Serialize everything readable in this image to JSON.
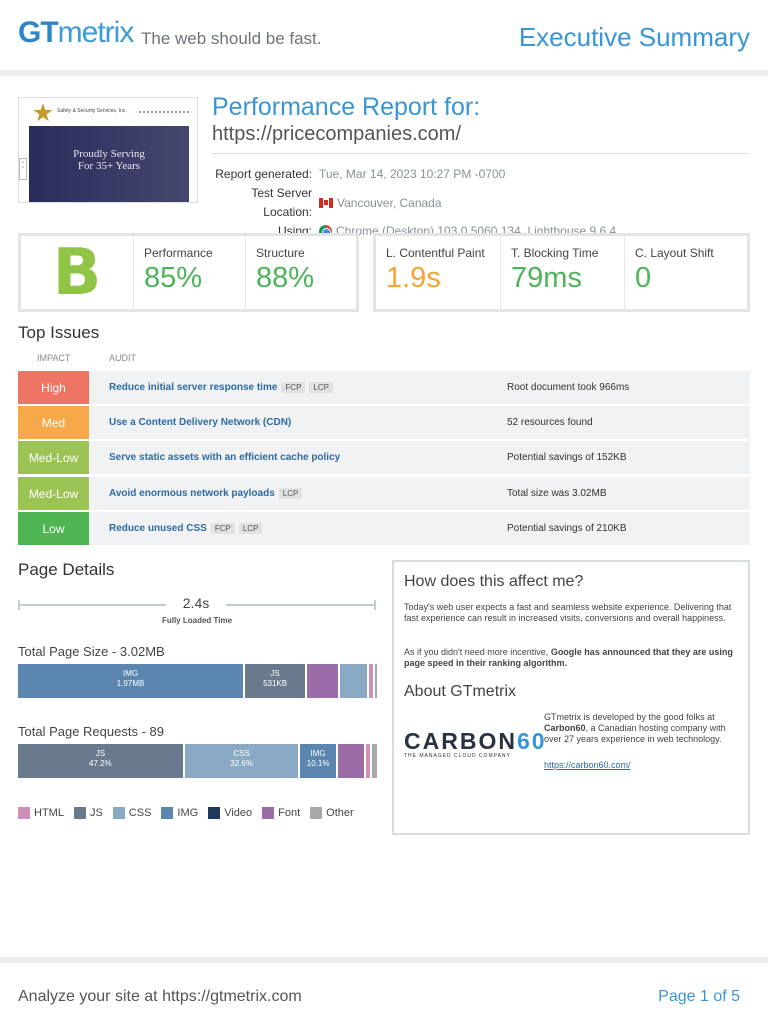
{
  "header": {
    "logo_gt": "GT",
    "logo_metrix": "metrix",
    "tagline": "The web should be fast.",
    "section_title": "Executive Summary"
  },
  "report": {
    "title": "Performance Report for:",
    "url": "https://pricecompanies.com/",
    "thumbnail": {
      "site_name": "Safety & Security Services, Inc.",
      "hero_line1": "Proudly Serving",
      "hero_line2": "For 35+ Years"
    },
    "meta": [
      {
        "label": "Report generated:",
        "value": "Tue, Mar 14, 2023 10:27 PM -0700",
        "icon": ""
      },
      {
        "label": "Test Server Location:",
        "value": "Vancouver, Canada",
        "icon": "canada-flag-icon"
      },
      {
        "label": "Using:",
        "value": "Chrome (Desktop) 103.0.5060.134, Lighthouse 9.6.4",
        "icon": "chrome-icon"
      }
    ]
  },
  "scores": {
    "grade": "B",
    "grade_color": "#8fc447",
    "metrics_left": [
      {
        "label": "Performance",
        "value": "85%"
      },
      {
        "label": "Structure",
        "value": "88%"
      }
    ],
    "metrics_right": [
      {
        "label": "L. Contentful Paint",
        "value": "1.9s",
        "color": "#f4a535"
      },
      {
        "label": "T. Blocking Time",
        "value": "79ms",
        "color": "#4eb45a"
      },
      {
        "label": "C. Layout Shift",
        "value": "0",
        "color": "#4eb45a"
      }
    ]
  },
  "top_issues": {
    "heading": "Top Issues",
    "col_impact": "IMPACT",
    "col_audit": "AUDIT",
    "rows": [
      {
        "impact": "High",
        "color": "#ee7563",
        "audit": "Reduce initial server response time",
        "tags": [
          "FCP",
          "LCP"
        ],
        "result": "Root document took 966ms"
      },
      {
        "impact": "Med",
        "color": "#f7a94a",
        "audit": "Use a Content Delivery Network (CDN)",
        "tags": [],
        "result": "52 resources found"
      },
      {
        "impact": "Med-Low",
        "color": "#9bc455",
        "audit": "Serve static assets with an efficient cache policy",
        "tags": [],
        "result": "Potential savings of 152KB"
      },
      {
        "impact": "Med-Low",
        "color": "#9bc455",
        "audit": "Avoid enormous network payloads",
        "tags": [
          "LCP"
        ],
        "result": "Total size was 3.02MB"
      },
      {
        "impact": "Low",
        "color": "#4fb452",
        "audit": "Reduce unused CSS",
        "tags": [
          "FCP",
          "LCP"
        ],
        "result": "Potential savings of 210KB"
      }
    ]
  },
  "page_details": {
    "heading": "Page Details",
    "fully_loaded_value": "2.4s",
    "fully_loaded_label": "Fully Loaded Time",
    "size_title": "Total Page Size - 3.02MB",
    "size_segments": [
      {
        "type": "IMG",
        "label": "IMG",
        "sub": "1.97MB",
        "share": 0.645,
        "color": "#5b86b0"
      },
      {
        "type": "JS",
        "label": "JS",
        "sub": "531KB",
        "share": 0.172,
        "color": "#6a7a8d"
      },
      {
        "type": "Font",
        "label": "",
        "sub": "",
        "share": 0.088,
        "color": "#9a6da8"
      },
      {
        "type": "CSS",
        "label": "",
        "sub": "",
        "share": 0.078,
        "color": "#8aa9c4"
      },
      {
        "type": "HTML",
        "label": "",
        "sub": "",
        "share": 0.01,
        "color": "#cf8fb8"
      },
      {
        "type": "Other",
        "label": "",
        "sub": "",
        "share": 0.007,
        "color": "#a8a8a8"
      }
    ],
    "requests_title": "Total Page Requests - 89",
    "request_segments": [
      {
        "type": "JS",
        "label": "JS",
        "sub": "47.2%",
        "share": 0.472,
        "color": "#6a7a8d"
      },
      {
        "type": "CSS",
        "label": "CSS",
        "sub": "32.6%",
        "share": 0.326,
        "color": "#8aa9c4"
      },
      {
        "type": "IMG",
        "label": "IMG",
        "sub": "10.1%",
        "share": 0.101,
        "color": "#5b86b0"
      },
      {
        "type": "Font",
        "label": "",
        "sub": "",
        "share": 0.075,
        "color": "#9a6da8"
      },
      {
        "type": "HTML",
        "label": "",
        "sub": "",
        "share": 0.012,
        "color": "#cf8fb8"
      },
      {
        "type": "Other",
        "label": "",
        "sub": "",
        "share": 0.014,
        "color": "#a8a8a8"
      }
    ],
    "legend": [
      {
        "label": "HTML",
        "color": "#cf8fb8"
      },
      {
        "label": "JS",
        "color": "#6a7a8d"
      },
      {
        "label": "CSS",
        "color": "#8aa9c4"
      },
      {
        "label": "IMG",
        "color": "#5b86b0"
      },
      {
        "label": "Video",
        "color": "#1d3a5c"
      },
      {
        "label": "Font",
        "color": "#9a6da8"
      },
      {
        "label": "Other",
        "color": "#a8a8a8"
      }
    ]
  },
  "info_panel": {
    "q_heading": "How does this affect me?",
    "q_text1": "Today's web user expects a fast and seamless website experience. Delivering that fast experience can result in increased visits, conversions and overall happiness.",
    "q_text2_pre": "As if you didn't need more incentive, ",
    "q_text2_bold": "Google has announced that they are using page speed in their ranking algorithm.",
    "about_heading": "About GTmetrix",
    "carbon_word": "CARBON",
    "carbon_num": "60",
    "carbon_tagline": "THE MANAGED CLOUD COMPANY",
    "about_pre": "GTmetrix is developed by the good folks at ",
    "about_bold": "Carbon60",
    "about_post": ", a Canadian hosting company with over 27 years experience in web technology.",
    "link": "https://carbon60.com/"
  },
  "footer": {
    "analyze": "Analyze your site at https://gtmetrix.com",
    "page": "Page 1 of 5"
  }
}
